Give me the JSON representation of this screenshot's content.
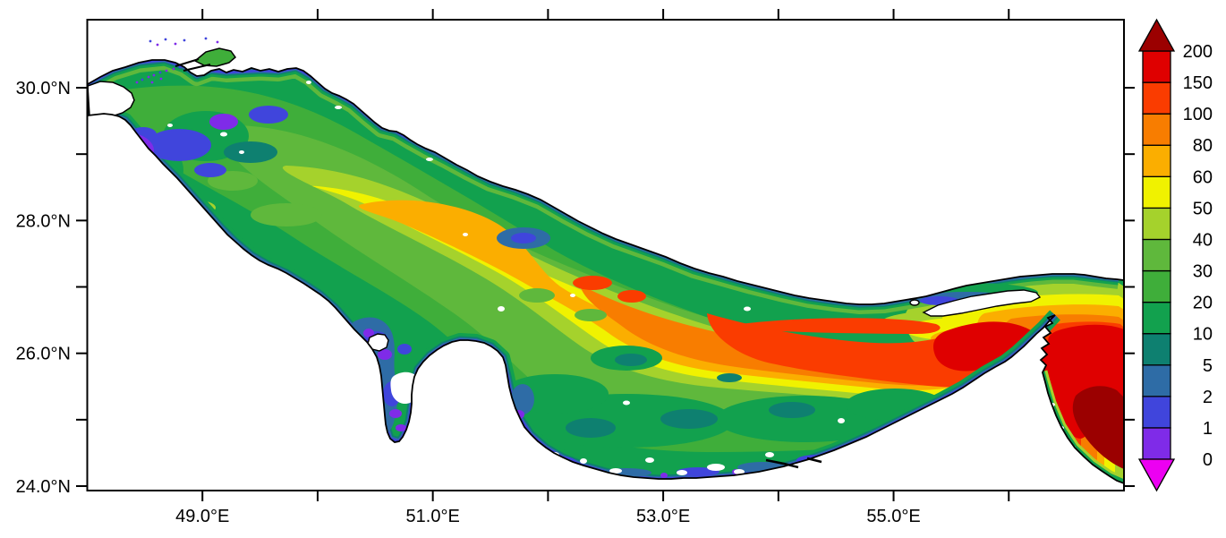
{
  "chart_data": {
    "type": "heatmap",
    "subtype": "filled-contour-map",
    "region_depicted": "Persian Gulf, Strait of Hormuz and western Gulf of Oman",
    "title": "",
    "grid": false,
    "x_axis": {
      "unit": "degrees East longitude",
      "range": [
        48.0,
        57.0
      ],
      "tick_step": 1.0,
      "labeled_ticks": [
        {
          "value": 49,
          "label": "49.0°E"
        },
        {
          "value": 51,
          "label": "51.0°E"
        },
        {
          "value": 53,
          "label": "53.0°E"
        },
        {
          "value": 55,
          "label": "55.0°E"
        }
      ]
    },
    "y_axis": {
      "unit": "degrees North latitude",
      "range": [
        23.9,
        31.0
      ],
      "tick_step": 1.0,
      "labeled_ticks": [
        {
          "value": 30,
          "label": "30.0°N"
        },
        {
          "value": 28,
          "label": "28.0°N"
        },
        {
          "value": 26,
          "label": "26.0°N"
        },
        {
          "value": 24,
          "label": "24.0°N"
        }
      ]
    },
    "colorbar": {
      "position": "right",
      "levels": [
        0,
        1,
        2,
        5,
        10,
        20,
        30,
        40,
        50,
        60,
        80,
        100,
        150,
        200
      ],
      "segment_order": [
        "0-1",
        "1-2",
        "2-5",
        "5-10",
        "10-20",
        "20-30",
        "30-40",
        "40-50",
        "50-60",
        "60-80",
        "80-100",
        "100-150",
        "150-200"
      ],
      "level_colors": {
        "under": "#EC00F2",
        "0-1": "#7F2BE8",
        "1-2": "#4045DC",
        "2-5": "#2E6CA6",
        "5-10": "#0E8070",
        "10-20": "#12A14E",
        "20-30": "#3FAE3A",
        "30-40": "#5FB83C",
        "40-50": "#A5D22C",
        "50-60": "#F0F200",
        "60-80": "#FBAE00",
        "80-100": "#F87D00",
        "100-150": "#FA3C00",
        "150-200": "#DF0000",
        "over": "#9B0000"
      }
    },
    "value_summary": [
      {
        "area": "northwest basin (48-50.5E, 28-30.4N)",
        "approx_values": "10-40 with 0-5 patches near shores"
      },
      {
        "area": "central axis band (50.5-55.5E along 26.5-28.5N)",
        "approx_values": "50-100, local maxima 100-150 toward Iranian side"
      },
      {
        "area": "Strait of Hormuz (56E, 26-26.8N)",
        "approx_values": "100-200"
      },
      {
        "area": "Gulf of Oman (56-57E, 24-25.5N)",
        "approx_values": "150 to over 200 (dark red core)"
      },
      {
        "area": "coastal fringes and Gulf of Salwa / Bahrain area",
        "approx_values": "0-10 (blue/violet)"
      },
      {
        "area": "southern UAE shelf (52-55E, 24-25N)",
        "approx_values": "5-30 with white no-data gaps"
      }
    ],
    "frame": {
      "background": "#FFFFFF",
      "axis_color": "#000000",
      "coastline_color": "#000000",
      "land_color": "#FFFFFF",
      "nodata_color": "#FFFFFF"
    }
  }
}
